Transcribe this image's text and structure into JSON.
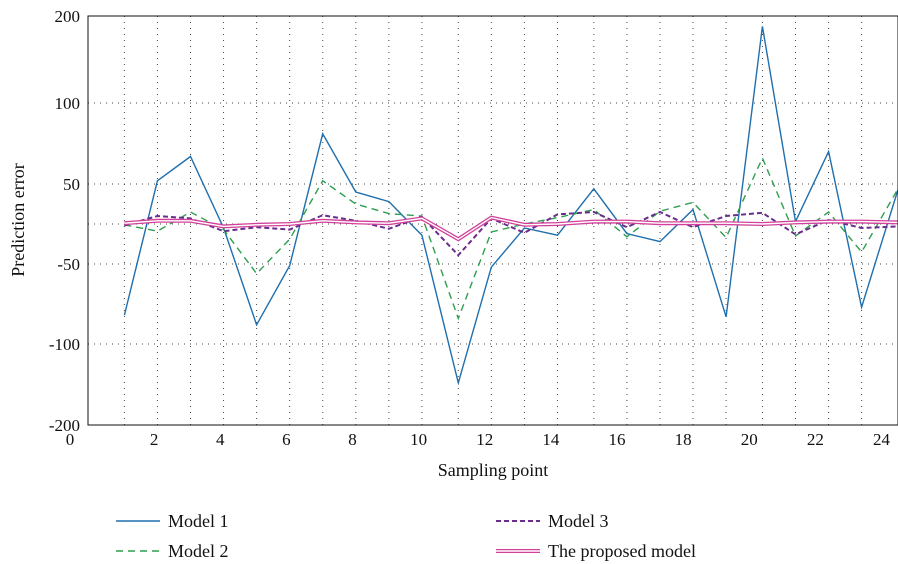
{
  "chart_data": {
    "type": "line",
    "xlabel": "Sampling point",
    "ylabel": "Prediction error",
    "xlim": [
      0,
      24.5
    ],
    "x_ticks": [
      {
        "value": 0,
        "label": "0"
      },
      {
        "value": 2,
        "label": "2"
      },
      {
        "value": 4,
        "label": "4"
      },
      {
        "value": 6,
        "label": "6"
      },
      {
        "value": 8,
        "label": "8"
      },
      {
        "value": 10,
        "label": "10"
      },
      {
        "value": 12,
        "label": "12"
      },
      {
        "value": 14,
        "label": "14"
      },
      {
        "value": 16,
        "label": "16"
      },
      {
        "value": 18,
        "label": "18"
      },
      {
        "value": 20,
        "label": "20"
      },
      {
        "value": 22,
        "label": "22"
      },
      {
        "value": 24,
        "label": "24"
      }
    ],
    "y_ticks": [
      {
        "value": 200,
        "label": "200"
      },
      {
        "value": 100,
        "label": "100"
      },
      {
        "value": 50,
        "label": "50"
      },
      {
        "value": 0,
        "label": ""
      },
      {
        "value": -50,
        "label": "-50"
      },
      {
        "value": -100,
        "label": "-100"
      },
      {
        "value": -200,
        "label": "-200"
      }
    ],
    "grid": true,
    "grid_style": "dotted",
    "legend_position": "bottom",
    "x": [
      1.1,
      2.1,
      3.1,
      4.1,
      5.1,
      6.1,
      7.1,
      8.1,
      9.1,
      10.1,
      11.2,
      12.2,
      13.2,
      14.2,
      15.3,
      16.3,
      17.3,
      18.3,
      19.3,
      20.4,
      21.4,
      22.4,
      23.4,
      24.5
    ],
    "series": [
      {
        "name": "Model 1",
        "color": "#1f6fae",
        "style": "solid",
        "values": [
          -82,
          52,
          67,
          -5,
          -88,
          -51,
          81,
          40,
          28,
          -14,
          -148,
          -52,
          -5,
          -14,
          44,
          -12,
          -22,
          18,
          -83,
          188,
          3,
          70,
          -77,
          43
        ]
      },
      {
        "name": "Model 2",
        "color": "#2e9e4f",
        "style": "dashed",
        "values": [
          -1,
          -9,
          15,
          -7,
          -56,
          -19,
          52,
          25,
          13,
          10,
          -84,
          -10,
          0,
          8,
          18,
          -16,
          16,
          27,
          -17,
          66,
          -15,
          15,
          -35,
          44
        ]
      },
      {
        "name": "Model 3",
        "color": "#6a2d8c",
        "style": "dashed-bold",
        "values": [
          -2,
          10,
          7,
          -9,
          -4,
          -7,
          11,
          4,
          -6,
          9,
          -39,
          7,
          -11,
          12,
          15,
          -4,
          15,
          -4,
          10,
          14,
          -13,
          5,
          -5,
          -3
        ]
      },
      {
        "name": "The proposed model",
        "color": "#d1409a",
        "style": "double",
        "values": [
          1,
          4,
          4,
          -3,
          -1,
          0,
          4,
          2,
          1,
          7,
          -19,
          8,
          -1,
          0,
          3,
          3,
          1,
          1,
          1,
          0,
          2,
          3,
          3,
          2
        ]
      }
    ]
  }
}
